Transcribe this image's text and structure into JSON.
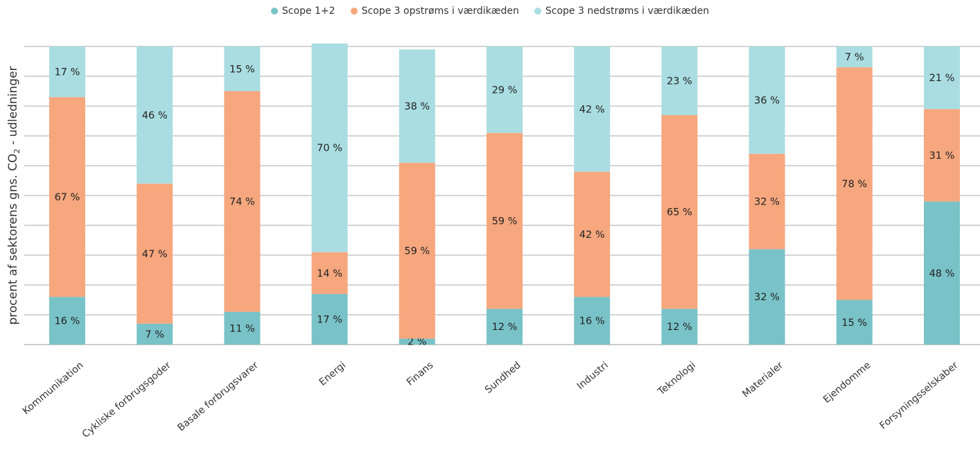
{
  "chart_data": {
    "type": "bar",
    "stacked": true,
    "ylabel_parts": [
      "procent af sektorens gns. CO",
      "2",
      " - udledninger"
    ],
    "ylim": [
      0,
      100
    ],
    "grid": true,
    "legend_position": "top-center",
    "categories": [
      "Kommunikation",
      "Cykliske forbrugsgoder",
      "Basale forbrugsvarer",
      "Energi",
      "Finans",
      "Sundhed",
      "Industri",
      "Teknologi",
      "Materialer",
      "Ejendomme",
      "Forsyningsselskaber"
    ],
    "series": [
      {
        "name": "Scope 1+2",
        "color": "#79c3c8",
        "values": [
          16,
          7,
          11,
          17,
          2,
          12,
          16,
          12,
          32,
          15,
          48
        ],
        "labels": [
          "16 %",
          "7 %",
          "11 %",
          "17 %",
          "2 %",
          "12 %",
          "16 %",
          "12 %",
          "32 %",
          "15 %",
          "48 %"
        ]
      },
      {
        "name": "Scope 3 opstrøms i værdikæden",
        "color": "#f6a77e",
        "values": [
          67,
          47,
          74,
          14,
          59,
          59,
          42,
          65,
          32,
          78,
          31
        ],
        "labels": [
          "67 %",
          "47 %",
          "74 %",
          "14 %",
          "59 %",
          "59 %",
          "42 %",
          "65 %",
          "32 %",
          "78 %",
          "31 %"
        ]
      },
      {
        "name": "Scope 3 nedstrøms i værdikæden",
        "color": "#aadde1",
        "values": [
          17,
          46,
          15,
          70,
          38,
          29,
          42,
          23,
          36,
          7,
          21
        ],
        "labels": [
          "17 %",
          "46 %",
          "15 %",
          "70 %",
          "38 %",
          "29 %",
          "42 %",
          "23 %",
          "36 %",
          "7 %",
          "21 %"
        ]
      }
    ]
  }
}
